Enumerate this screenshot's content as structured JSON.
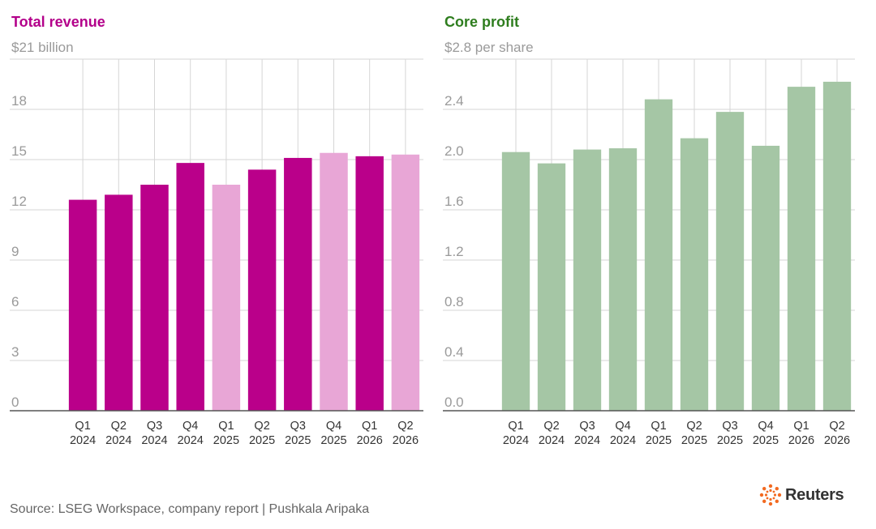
{
  "colors": {
    "revenue_dark": "#BA008A",
    "revenue_light": "#E8A6D6",
    "profit": "#A5C6A5",
    "revenue_title": "#B3008A",
    "profit_title": "#2E7D1E",
    "grid": "#d6d6d6",
    "axis": "#555555"
  },
  "chart_data": [
    {
      "type": "bar",
      "title": "Total revenue",
      "ylabel": "$21 billion",
      "ylim": [
        0,
        21
      ],
      "yticks": [
        "0",
        "3",
        "6",
        "9",
        "12",
        "15",
        "18"
      ],
      "categories": [
        [
          "Q1",
          "2024"
        ],
        [
          "Q2",
          "2024"
        ],
        [
          "Q3",
          "2024"
        ],
        [
          "Q4",
          "2024"
        ],
        [
          "Q1",
          "2025"
        ],
        [
          "Q2",
          "2025"
        ],
        [
          "Q3",
          "2025"
        ],
        [
          "Q4",
          "2025"
        ],
        [
          "Q1",
          "2026"
        ],
        [
          "Q2",
          "2026"
        ]
      ],
      "values": [
        12.6,
        12.9,
        13.5,
        14.8,
        13.5,
        14.4,
        15.1,
        15.4,
        15.2,
        15.3
      ],
      "bar_colors": [
        "revenue_dark",
        "revenue_dark",
        "revenue_dark",
        "revenue_dark",
        "revenue_light",
        "revenue_dark",
        "revenue_dark",
        "revenue_light",
        "revenue_dark",
        "revenue_light"
      ]
    },
    {
      "type": "bar",
      "title": "Core profit",
      "ylabel": "$2.8 per share",
      "ylim": [
        0,
        2.8
      ],
      "yticks": [
        "0.0",
        "0.4",
        "0.8",
        "1.2",
        "1.6",
        "2.0",
        "2.4"
      ],
      "categories": [
        [
          "Q1",
          "2024"
        ],
        [
          "Q2",
          "2024"
        ],
        [
          "Q3",
          "2024"
        ],
        [
          "Q4",
          "2024"
        ],
        [
          "Q1",
          "2025"
        ],
        [
          "Q2",
          "2025"
        ],
        [
          "Q3",
          "2025"
        ],
        [
          "Q4",
          "2025"
        ],
        [
          "Q1",
          "2026"
        ],
        [
          "Q2",
          "2026"
        ]
      ],
      "values": [
        2.06,
        1.97,
        2.08,
        2.09,
        2.48,
        2.17,
        2.38,
        2.11,
        2.58,
        2.62
      ],
      "bar_colors": [
        "profit",
        "profit",
        "profit",
        "profit",
        "profit",
        "profit",
        "profit",
        "profit",
        "profit",
        "profit"
      ]
    }
  ],
  "footer": {
    "source": "Source: LSEG Workspace, company report | Pushkala Aripaka"
  },
  "logo": {
    "text": "Reuters"
  }
}
